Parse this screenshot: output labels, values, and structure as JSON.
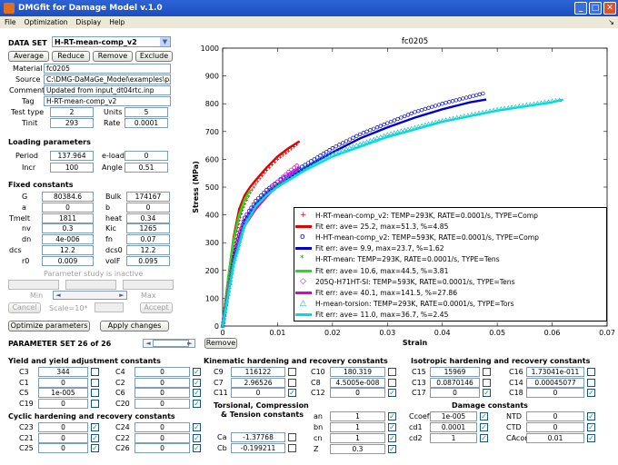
{
  "window": {
    "title": "DMGfit for Damage Model v.1.0",
    "icons": [
      "minimize-icon",
      "maximize-icon",
      "close-icon"
    ],
    "buttons": [
      "_",
      "□",
      "✕"
    ]
  },
  "menu": [
    "File",
    "Optimization",
    "Display",
    "Help"
  ],
  "menu_dock": "↘",
  "dataset": {
    "label": "DATA SET",
    "selected": "H-RT-mean-comp_v2",
    "buttons": [
      "Average",
      "Reduce",
      "Remove",
      "Exclude"
    ],
    "material_label": "Material",
    "material": "fc0205",
    "source_label": "Source",
    "source": "C:\\DMG-DaMaGe_Model\\examples\\pa",
    "comment_label": "Comment",
    "comment": "Updated from input_dt04rtc.inp",
    "tag_label": "Tag",
    "tag": "H-RT-mean-comp_v2",
    "testtype_label": "Test type",
    "testtype": "2",
    "units_label": "Units",
    "units": "5",
    "tinit_label": "Tinit",
    "tinit": "293",
    "rate_label": "Rate",
    "rate": "0.0001"
  },
  "loading": {
    "header": "Loading parameters",
    "period_label": "Period",
    "period": "137.964",
    "eload_label": "e-load",
    "eload": "0",
    "incr_label": "Incr",
    "incr": "100",
    "angle_label": "Angle",
    "angle": "0.51"
  },
  "fixed": {
    "header": "Fixed constants",
    "rows": [
      {
        "l1": "G",
        "v1": "80384.6",
        "l2": "Bulk",
        "v2": "174167"
      },
      {
        "l1": "a",
        "v1": "0",
        "l2": "b",
        "v2": "0"
      },
      {
        "l1": "Tmelt",
        "v1": "1811",
        "l2": "heat",
        "v2": "0.34"
      },
      {
        "l1": "nv",
        "v1": "0.3",
        "l2": "Kic",
        "v2": "1265"
      },
      {
        "l1": "dn",
        "v1": "4e-006",
        "l2": "fn",
        "v2": "0.07"
      },
      {
        "l1": "dcs",
        "v1": "12.2",
        "l2": "dcs0",
        "v2": "12.2"
      },
      {
        "l1": "r0",
        "v1": "0.009",
        "l2": "volF",
        "v2": "0.095"
      }
    ]
  },
  "study": {
    "inactive_text": "Parameter study is inactive",
    "min_label": "Min",
    "max_label": "Max",
    "cancel": "Cancel",
    "scale": "Scale=10*",
    "accept": "Accept"
  },
  "actions": {
    "optimize": "Optimize parameters",
    "apply": "Apply changes"
  },
  "paramset": {
    "label": "PARAMETER SET 26 of 26",
    "remove": "Remove"
  },
  "yield": {
    "header": "Yield and yield adjustment constants",
    "rows": [
      {
        "l1": "C3",
        "v1": "344",
        "c1": false,
        "l2": "C4",
        "v2": "0",
        "c2": true
      },
      {
        "l1": "C1",
        "v1": "0",
        "c1": false,
        "l2": "C2",
        "v2": "0",
        "c2": true
      },
      {
        "l1": "C5",
        "v1": "1e-005",
        "c1": false,
        "l2": "C6",
        "v2": "0",
        "c2": true
      },
      {
        "l1": "C19",
        "v1": "0",
        "c1": false,
        "l2": "C20",
        "v2": "0",
        "c2": true
      }
    ]
  },
  "cyclic": {
    "header": "Cyclic hardening and recovery constants",
    "rows": [
      {
        "l1": "C23",
        "v1": "0",
        "c1": true,
        "l2": "C24",
        "v2": "0",
        "c2": true
      },
      {
        "l1": "C21",
        "v1": "0",
        "c1": true,
        "l2": "C22",
        "v2": "0",
        "c2": true
      },
      {
        "l1": "C25",
        "v1": "0",
        "c1": true,
        "l2": "C26",
        "v2": "0",
        "c2": true
      }
    ]
  },
  "kinematic": {
    "header": "Kinematic hardening and recovery constants",
    "rows": [
      {
        "l1": "C9",
        "v1": "116122",
        "c1": false,
        "l2": "C10",
        "v2": "180.319",
        "c2": false
      },
      {
        "l1": "C7",
        "v1": "2.96526",
        "c1": false,
        "l2": "C8",
        "v2": "4.5005e-008",
        "c2": false
      },
      {
        "l1": "C11",
        "v1": "0",
        "c1": true,
        "l2": "C12",
        "v2": "0",
        "c2": true
      }
    ]
  },
  "torsional": {
    "header1": "Torsional, Compression",
    "header2": "& Tension constants",
    "rows": [
      {
        "l": "Ca",
        "v": "-1.37768",
        "c": false
      },
      {
        "l": "Cb",
        "v": "-0.199211",
        "c": false
      }
    ],
    "rows2": [
      {
        "l": "an",
        "v": "1",
        "c": true
      },
      {
        "l": "bn",
        "v": "1",
        "c": true
      },
      {
        "l": "cn",
        "v": "1",
        "c": true
      },
      {
        "l": "Z",
        "v": "0.3",
        "c": true
      }
    ]
  },
  "isotropic": {
    "header": "Isotropic hardening and recovery constants",
    "rows": [
      {
        "l1": "C15",
        "v1": "15969",
        "c1": false,
        "l2": "C16",
        "v2": "1.73041e-011",
        "c2": false
      },
      {
        "l1": "C13",
        "v1": "0.0870146",
        "c1": false,
        "l2": "C14",
        "v2": "0.00045077",
        "c2": false
      },
      {
        "l1": "C17",
        "v1": "0",
        "c1": true,
        "l2": "C18",
        "v2": "0",
        "c2": true
      }
    ]
  },
  "damage": {
    "header": "Damage constants",
    "rows": [
      {
        "l1": "Ccoef",
        "v1": "1e-005",
        "c1": true,
        "l2": "NTD",
        "v2": "0",
        "c2": true
      },
      {
        "l1": "cd1",
        "v1": "0.0001",
        "c1": true,
        "l2": "CTD",
        "v2": "0",
        "c2": true
      },
      {
        "l1": "cd2",
        "v1": "1",
        "c1": true,
        "l2": "CAcon",
        "v2": "0.01",
        "c2": true
      }
    ]
  },
  "chart_data": {
    "type": "line",
    "title": "fc0205",
    "xlabel": "Strain",
    "ylabel": "Stress (MPa)",
    "xlim": [
      0,
      0.07
    ],
    "ylim": [
      0,
      1000
    ],
    "xticks": [
      "0",
      "0.01",
      "0.02",
      "0.03",
      "0.04",
      "0.05",
      "0.06",
      "0.07"
    ],
    "yticks": [
      "0",
      "100",
      "200",
      "300",
      "400",
      "500",
      "600",
      "700",
      "800",
      "900",
      "1000"
    ],
    "legend_position": "lower-right",
    "series": [
      {
        "name": "H-RT-mean-comp_v2: TEMP=293K, RATE=0.0001/s, TYPE=Comp",
        "kind": "data",
        "marker": "+",
        "color": "#e00000",
        "x": [
          0,
          0.001,
          0.002,
          0.003,
          0.004,
          0.005,
          0.006,
          0.008,
          0.01,
          0.012,
          0.014
        ],
        "y": [
          0,
          150,
          290,
          380,
          440,
          480,
          510,
          560,
          600,
          630,
          660
        ]
      },
      {
        "name": "Fit err: ave= 25.2, max=51.3, %=4.85",
        "kind": "fit",
        "color": "#e00000",
        "x": [
          0,
          0.001,
          0.002,
          0.003,
          0.004,
          0.005,
          0.006,
          0.008,
          0.01,
          0.012,
          0.014
        ],
        "y": [
          0,
          170,
          320,
          420,
          470,
          500,
          525,
          570,
          610,
          640,
          665
        ]
      },
      {
        "name": "H-HT-mean-comp_v2: TEMP=593K, RATE=0.0001/s, TYPE=Comp",
        "kind": "data",
        "marker": "o",
        "color": "#0000cc",
        "x": [
          0,
          0.002,
          0.004,
          0.006,
          0.008,
          0.01,
          0.015,
          0.02,
          0.025,
          0.03,
          0.035,
          0.04,
          0.045,
          0.048
        ],
        "y": [
          0,
          260,
          390,
          450,
          490,
          520,
          580,
          640,
          690,
          730,
          770,
          800,
          825,
          840
        ]
      },
      {
        "name": "Fit err: ave= 9.9, max=23.7, %=1.62",
        "kind": "fit",
        "color": "#0000cc",
        "x": [
          0,
          0.002,
          0.004,
          0.006,
          0.008,
          0.01,
          0.015,
          0.02,
          0.025,
          0.03,
          0.035,
          0.04,
          0.045,
          0.048
        ],
        "y": [
          0,
          250,
          380,
          440,
          480,
          510,
          570,
          625,
          675,
          715,
          750,
          780,
          805,
          815
        ]
      },
      {
        "name": "H-RT-mean: TEMP=293K, RATE=0.0001/s, TYPE=Tens",
        "kind": "data",
        "marker": "*",
        "color": "#00aa00",
        "x": [
          0,
          0.001,
          0.002,
          0.003,
          0.004,
          0.005
        ],
        "y": [
          0,
          160,
          300,
          390,
          450,
          480
        ]
      },
      {
        "name": "Fit err: ave= 10.6, max=44.5, %=3.81",
        "kind": "fit",
        "color": "#22dd22",
        "x": [
          0,
          0.001,
          0.002,
          0.003,
          0.004,
          0.005
        ],
        "y": [
          0,
          170,
          310,
          400,
          455,
          490
        ]
      },
      {
        "name": "205Q-H71HT-SI: TEMP=593K, RATE=0.0001/s, TYPE=Tens",
        "kind": "data",
        "marker": "◇",
        "color": "#cc00cc",
        "x": [
          0,
          0.001,
          0.002,
          0.003,
          0.004,
          0.006,
          0.008,
          0.01,
          0.012,
          0.014
        ],
        "y": [
          0,
          130,
          250,
          330,
          380,
          440,
          480,
          520,
          555,
          585
        ]
      },
      {
        "name": "Fit err: ave= 40.1, max=141.5, %=27.86",
        "kind": "fit",
        "color": "#dd00dd",
        "x": [
          0,
          0.001,
          0.002,
          0.003,
          0.004,
          0.006,
          0.008,
          0.01,
          0.012,
          0.014
        ],
        "y": [
          0,
          120,
          230,
          310,
          360,
          420,
          465,
          505,
          540,
          570
        ]
      },
      {
        "name": "H-mean-torsion: TEMP=293K, RATE=0.0001/s, TYPE=Tors",
        "kind": "data",
        "marker": "△",
        "color": "#00bbbb",
        "x": [
          0,
          0.002,
          0.004,
          0.006,
          0.008,
          0.01,
          0.015,
          0.02,
          0.03,
          0.04,
          0.05,
          0.06,
          0.062
        ],
        "y": [
          0,
          230,
          370,
          440,
          480,
          510,
          570,
          620,
          690,
          740,
          780,
          810,
          815
        ]
      },
      {
        "name": "Fit err: ave= 11.0, max=36.7, %=2.45",
        "kind": "fit",
        "color": "#00dddd",
        "x": [
          0,
          0.002,
          0.004,
          0.006,
          0.008,
          0.01,
          0.015,
          0.02,
          0.03,
          0.04,
          0.05,
          0.06,
          0.062
        ],
        "y": [
          0,
          220,
          360,
          430,
          470,
          500,
          560,
          610,
          680,
          735,
          775,
          805,
          815
        ]
      }
    ]
  }
}
